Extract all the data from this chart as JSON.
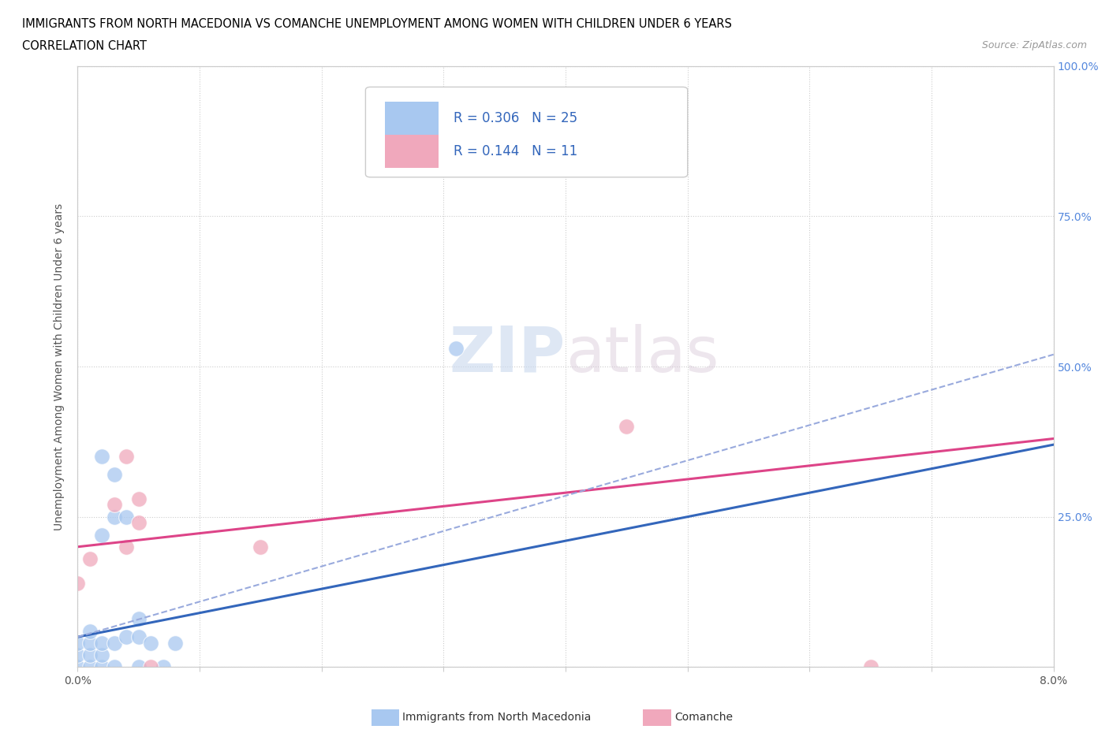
{
  "title_line1": "IMMIGRANTS FROM NORTH MACEDONIA VS COMANCHE UNEMPLOYMENT AMONG WOMEN WITH CHILDREN UNDER 6 YEARS",
  "title_line2": "CORRELATION CHART",
  "source_text": "Source: ZipAtlas.com",
  "ylabel": "Unemployment Among Women with Children Under 6 years",
  "xlim": [
    0.0,
    0.08
  ],
  "ylim": [
    0.0,
    1.0
  ],
  "xticks": [
    0.0,
    0.01,
    0.02,
    0.03,
    0.04,
    0.05,
    0.06,
    0.07,
    0.08
  ],
  "yticks": [
    0.0,
    0.25,
    0.5,
    0.75,
    1.0
  ],
  "blue_color": "#A8C8F0",
  "pink_color": "#F0A8BC",
  "blue_line_color": "#3366BB",
  "pink_line_color": "#DD4488",
  "dashed_line_color": "#99AADD",
  "R_blue": 0.306,
  "N_blue": 25,
  "R_pink": 0.144,
  "N_pink": 11,
  "blue_scatter_x": [
    0.0,
    0.0,
    0.0,
    0.001,
    0.001,
    0.001,
    0.001,
    0.002,
    0.002,
    0.002,
    0.002,
    0.002,
    0.003,
    0.003,
    0.003,
    0.003,
    0.004,
    0.004,
    0.005,
    0.005,
    0.005,
    0.006,
    0.007,
    0.008,
    0.031
  ],
  "blue_scatter_y": [
    0.0,
    0.02,
    0.04,
    0.0,
    0.02,
    0.04,
    0.06,
    0.0,
    0.02,
    0.04,
    0.22,
    0.35,
    0.0,
    0.04,
    0.25,
    0.32,
    0.05,
    0.25,
    0.0,
    0.05,
    0.08,
    0.04,
    0.0,
    0.04,
    0.53
  ],
  "pink_scatter_x": [
    0.0,
    0.001,
    0.003,
    0.004,
    0.004,
    0.005,
    0.005,
    0.006,
    0.015,
    0.045,
    0.065
  ],
  "pink_scatter_y": [
    0.14,
    0.18,
    0.27,
    0.2,
    0.35,
    0.24,
    0.28,
    0.0,
    0.2,
    0.4,
    0.0
  ],
  "blue_trend_x": [
    0.0,
    0.08
  ],
  "blue_trend_y": [
    0.05,
    0.37
  ],
  "pink_trend_x": [
    0.0,
    0.08
  ],
  "pink_trend_y": [
    0.2,
    0.38
  ],
  "dashed_trend_x": [
    0.0,
    0.08
  ],
  "dashed_trend_y": [
    0.05,
    0.52
  ]
}
